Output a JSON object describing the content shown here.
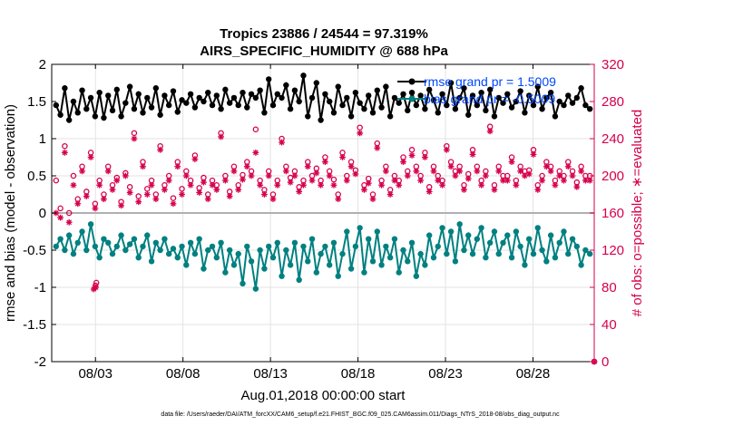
{
  "chart_data": {
    "type": "line",
    "title": "Tropics 23886 / 24544 = 97.319%",
    "subtitle": "AIRS_SPECIFIC_HUMIDITY @ 688 hPa",
    "ylabel": "rmse and bias (model - observation)",
    "y2label": "# of obs: o=possible; ∗=evaluated",
    "xlabel": "Aug.01,2018 00:00:00 start",
    "footer": "data file: /Users/raeder/DAI/ATM_forcXX/CAM6_setup/f.e21.FHIST_BGC.f09_025.CAM6assim.011/Diags_NTrS_2018-08/obs_diag_output.nc",
    "xlim": [
      0.5,
      31.5
    ],
    "ylim": [
      -2,
      2
    ],
    "y2lim": [
      0,
      320
    ],
    "xticks": [
      3,
      8,
      13,
      18,
      23,
      28
    ],
    "xtick_labels": [
      "08/03",
      "08/08",
      "08/13",
      "08/18",
      "08/23",
      "08/28"
    ],
    "yticks": [
      -2,
      -1.5,
      -1,
      -0.5,
      0,
      0.5,
      1,
      1.5,
      2
    ],
    "ytick_labels": [
      "-2",
      "-1.5",
      "-1",
      "-0.5",
      "0",
      "0.5",
      "1",
      "1.5",
      "2"
    ],
    "y2ticks": [
      0,
      40,
      80,
      120,
      160,
      200,
      240,
      280,
      320
    ],
    "y2tick_labels": [
      "0",
      "40",
      "80",
      "120",
      "160",
      "200",
      "240",
      "280",
      "320"
    ],
    "grid": true,
    "n_points": 124,
    "series": [
      {
        "name": "rmse grand pr = 1.5009",
        "axis": "left",
        "marker": "hexagram",
        "color": "#000000",
        "values": [
          1.45,
          1.32,
          1.68,
          1.25,
          1.5,
          1.35,
          1.65,
          1.4,
          1.55,
          1.3,
          1.62,
          1.28,
          1.58,
          1.38,
          1.66,
          1.3,
          1.48,
          1.7,
          1.4,
          1.6,
          1.35,
          1.55,
          1.42,
          1.68,
          1.32,
          1.58,
          1.45,
          1.64,
          1.36,
          1.52,
          1.48,
          1.6,
          1.42,
          1.55,
          1.5,
          1.62,
          1.45,
          1.58,
          1.4,
          1.66,
          1.48,
          1.55,
          1.45,
          1.62,
          1.42,
          1.6,
          1.55,
          1.65,
          1.35,
          1.8,
          1.45,
          1.6,
          1.55,
          1.72,
          1.4,
          1.65,
          1.5,
          1.85,
          1.3,
          1.55,
          1.75,
          1.25,
          1.6,
          1.5,
          1.35,
          1.7,
          1.45,
          1.55,
          1.3,
          1.62,
          1.48,
          1.4,
          1.58,
          1.35,
          1.65,
          1.42,
          1.7,
          1.3,
          1.55,
          1.48,
          1.6,
          1.38,
          1.62,
          1.45,
          1.58,
          1.4,
          1.66,
          1.52,
          1.35,
          1.6,
          1.45,
          1.75,
          1.4,
          1.55,
          1.68,
          1.32,
          1.58,
          1.45,
          1.62,
          1.38,
          1.66,
          1.3,
          1.55,
          1.48,
          1.6,
          1.42,
          1.5,
          1.64,
          1.35,
          1.58,
          1.45,
          1.7,
          1.4,
          1.55,
          1.62,
          1.3,
          1.5,
          1.45,
          1.58,
          1.48,
          1.55,
          1.68,
          1.45,
          1.4
        ]
      },
      {
        "name": "bias grand pr = -0.5009",
        "axis": "left",
        "marker": "circle",
        "color": "#008080",
        "values": [
          -0.45,
          -0.35,
          -0.5,
          -0.3,
          -0.55,
          -0.4,
          -0.25,
          -0.5,
          -0.15,
          -0.45,
          -0.6,
          -0.35,
          -0.4,
          -0.55,
          -0.45,
          -0.3,
          -0.5,
          -0.42,
          -0.35,
          -0.6,
          -0.45,
          -0.3,
          -0.65,
          -0.4,
          -0.5,
          -0.35,
          -0.55,
          -0.48,
          -0.6,
          -0.45,
          -0.7,
          -0.4,
          -0.55,
          -0.35,
          -0.75,
          -0.5,
          -0.45,
          -0.6,
          -0.4,
          -0.8,
          -0.5,
          -0.7,
          -0.55,
          -0.95,
          -0.45,
          -0.65,
          -1.02,
          -0.5,
          -0.75,
          -0.45,
          -0.6,
          -0.4,
          -0.85,
          -0.5,
          -0.7,
          -0.4,
          -0.9,
          -0.45,
          -0.65,
          -0.35,
          -0.8,
          -0.55,
          -0.45,
          -0.7,
          -0.4,
          -0.85,
          -0.55,
          -0.25,
          -0.75,
          -0.45,
          -0.2,
          -0.8,
          -0.35,
          -0.65,
          -0.25,
          -0.7,
          -0.45,
          -0.6,
          -0.35,
          -0.8,
          -0.5,
          -0.65,
          -0.4,
          -0.85,
          -0.55,
          -0.7,
          -0.3,
          -0.6,
          -0.45,
          -0.2,
          -0.55,
          -0.25,
          -0.65,
          -0.15,
          -0.5,
          -0.3,
          -0.55,
          -0.35,
          -0.2,
          -0.6,
          -0.4,
          -0.25,
          -0.55,
          -0.4,
          -0.3,
          -0.6,
          -0.25,
          -0.45,
          -0.7,
          -0.35,
          -0.55,
          -0.2,
          -0.5,
          -0.65,
          -0.3,
          -0.6,
          -0.4,
          -0.25,
          -0.55,
          -0.35,
          -0.45,
          -0.7,
          -0.5,
          -0.55
        ]
      },
      {
        "name": "# of obs possible",
        "axis": "right",
        "marker": "open-circle",
        "color": "#d6004c",
        "values": [
          195,
          165,
          232,
          160,
          200,
          175,
          210,
          183,
          225,
          170,
          195,
          180,
          210,
          190,
          198,
          172,
          203,
          188,
          246,
          178,
          215,
          186,
          195,
          180,
          232,
          190,
          200,
          176,
          215,
          186,
          205,
          195,
          222,
          187,
          198,
          180,
          195,
          190,
          246,
          200,
          183,
          210,
          190,
          201,
          215,
          205,
          250,
          195,
          185,
          205,
          180,
          195,
          240,
          210,
          198,
          205,
          188,
          195,
          215,
          200,
          208,
          195,
          220,
          205,
          196,
          180,
          225,
          200,
          215,
          206,
          252,
          190,
          197,
          180,
          235,
          195,
          210,
          185,
          200,
          195,
          220,
          205,
          228,
          210,
          200,
          225,
          188,
          210,
          200,
          195,
          232,
          215,
          205,
          210,
          190,
          202,
          228,
          210,
          195,
          205,
          253,
          190,
          210,
          200,
          200,
          220,
          195,
          210,
          205,
          206,
          228,
          190,
          200,
          215,
          210,
          195,
          205,
          200,
          215,
          205,
          193,
          210,
          200,
          200
        ]
      },
      {
        "name": "# of obs evaluated",
        "axis": "right",
        "marker": "asterisk",
        "color": "#d6004c",
        "values": [
          160,
          155,
          225,
          150,
          190,
          170,
          205,
          178,
          220,
          165,
          190,
          175,
          205,
          185,
          195,
          168,
          200,
          182,
          240,
          172,
          210,
          180,
          190,
          175,
          228,
          185,
          195,
          170,
          210,
          180,
          200,
          190,
          218,
          182,
          193,
          175,
          190,
          185,
          242,
          195,
          178,
          205,
          185,
          196,
          210,
          200,
          225,
          190,
          180,
          200,
          175,
          190,
          236,
          205,
          193,
          200,
          183,
          190,
          210,
          195,
          203,
          190,
          215,
          200,
          190,
          175,
          220,
          195,
          210,
          202,
          246,
          185,
          192,
          175,
          230,
          190,
          205,
          180,
          195,
          190,
          215,
          200,
          222,
          205,
          195,
          220,
          183,
          205,
          195,
          190,
          228,
          210,
          200,
          205,
          185,
          197,
          223,
          205,
          190,
          200,
          248,
          185,
          205,
          195,
          195,
          215,
          190,
          205,
          200,
          202,
          223,
          185,
          195,
          210,
          205,
          190,
          200,
          195,
          210,
          200,
          188,
          205,
          195,
          195
        ]
      }
    ],
    "outliers_possible": [
      {
        "x": 3.0,
        "y2": 82
      },
      {
        "x": 3.05,
        "y2": 85
      }
    ],
    "outliers_evaluated": [
      {
        "x": 2.9,
        "y2": 78
      },
      {
        "x": 3.02,
        "y2": 80
      }
    ],
    "x_axis_marker": {
      "x": 31.5,
      "y2": 0
    }
  }
}
